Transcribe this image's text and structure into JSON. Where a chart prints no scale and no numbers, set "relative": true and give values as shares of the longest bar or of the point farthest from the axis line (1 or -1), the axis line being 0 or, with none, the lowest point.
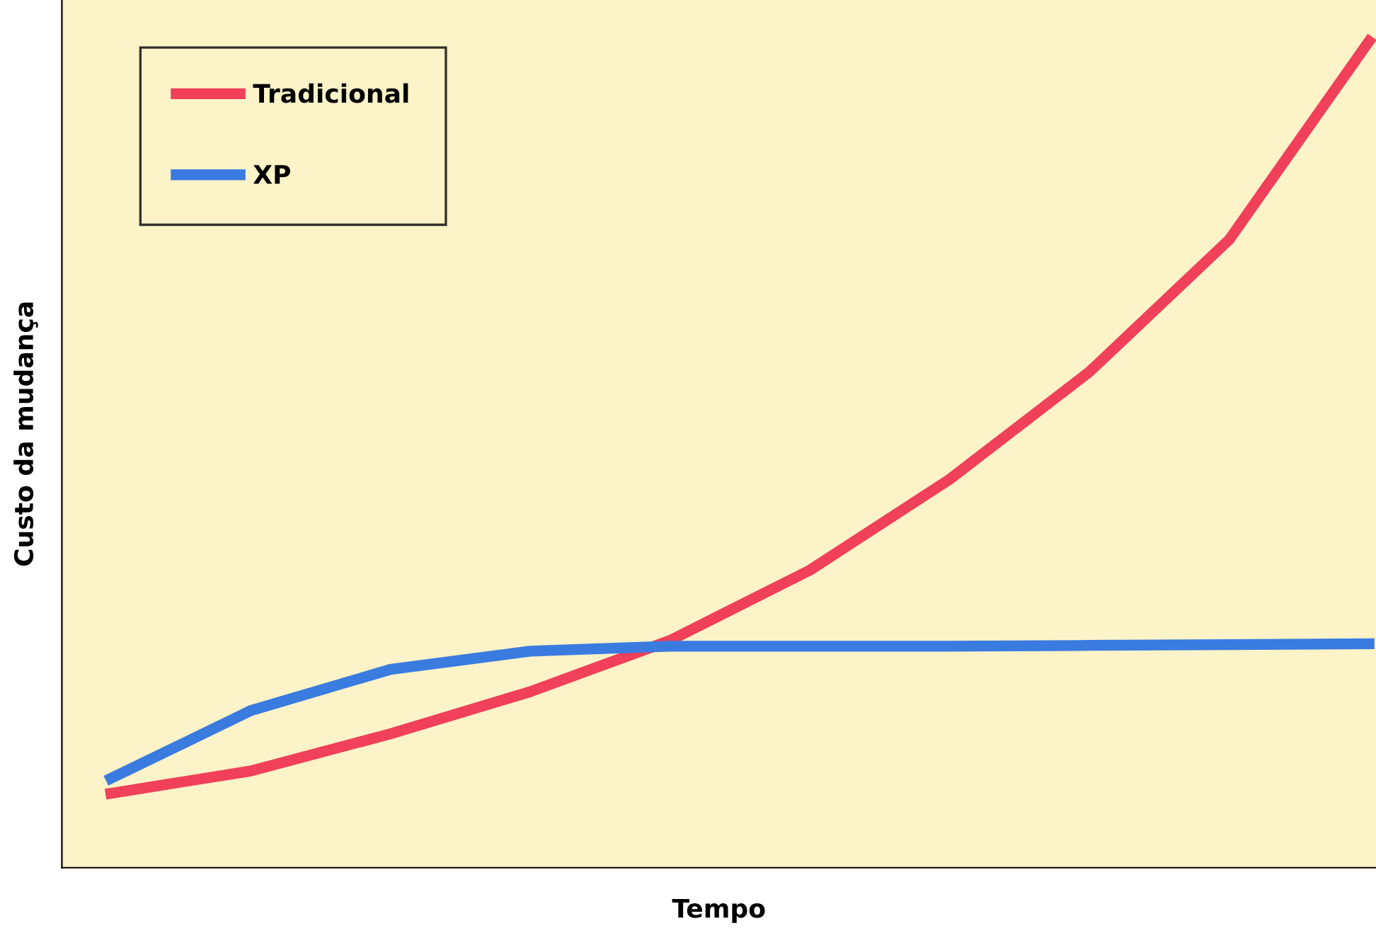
{
  "chart_data": {
    "type": "line",
    "relative": true,
    "xlabel": "Tempo",
    "ylabel": "Custo da mudança",
    "legend": "top left",
    "grid": false,
    "categories": [
      null,
      null,
      null,
      null,
      null,
      null,
      null,
      null,
      null,
      null
    ],
    "series": [
      {
        "name": "Tradicional",
        "color": "#f0405a",
        "values": [
          0.09,
          0.117,
          0.162,
          0.213,
          0.275,
          0.36,
          0.47,
          0.6,
          0.76,
          1.0
        ]
      },
      {
        "name": "XP",
        "color": "#3a7be0",
        "values": [
          0.108,
          0.19,
          0.24,
          0.262,
          0.268,
          0.268,
          0.268,
          0.269,
          0.27,
          0.271
        ]
      }
    ]
  }
}
